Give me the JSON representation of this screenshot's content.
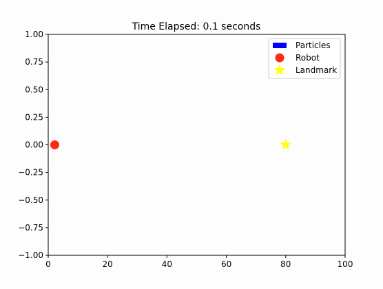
{
  "chart_data": {
    "type": "scatter",
    "title": "Time Elapsed: 0.1 seconds",
    "xlabel": "",
    "ylabel": "",
    "xlim": [
      0,
      100
    ],
    "ylim": [
      -1.0,
      1.0
    ],
    "x_ticks": [
      0,
      20,
      40,
      60,
      80,
      100
    ],
    "x_tick_labels": [
      "0",
      "20",
      "40",
      "60",
      "80",
      "100"
    ],
    "y_ticks": [
      1.0,
      0.75,
      0.5,
      0.25,
      0.0,
      -0.25,
      -0.5,
      -0.75,
      -1.0
    ],
    "y_tick_labels": [
      "1.00",
      "0.75",
      "0.50",
      "0.25",
      "0.00",
      "−0.25",
      "−0.50",
      "−0.75",
      "−1.00"
    ],
    "grid": false,
    "legend_position": "top-right",
    "series": [
      {
        "name": "Particles",
        "marker": "bar",
        "color": "#0000ff",
        "points": []
      },
      {
        "name": "Robot",
        "marker": "circle",
        "color": "#ff2a12",
        "points": [
          {
            "x": 2.2,
            "y": 0.0
          }
        ]
      },
      {
        "name": "Landmark",
        "marker": "star",
        "color": "#ffff14",
        "points": [
          {
            "x": 80,
            "y": 0.0
          }
        ]
      }
    ]
  }
}
